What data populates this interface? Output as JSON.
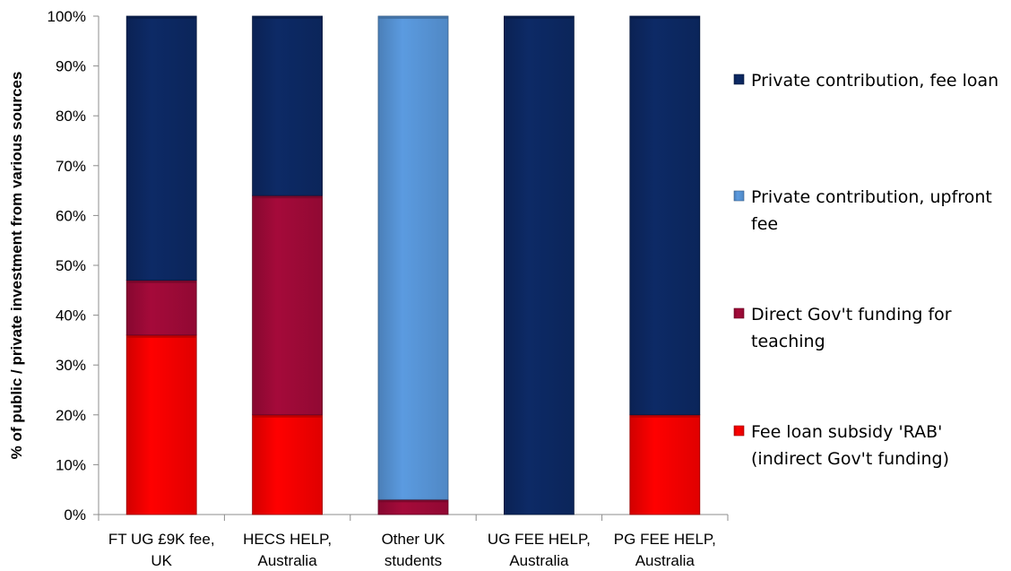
{
  "chart_data": {
    "type": "bar",
    "stacked": true,
    "ylabel": "% of public / private investment from various sources",
    "xlabel": "",
    "ylim": [
      0,
      100
    ],
    "yticks": [
      "0%",
      "10%",
      "20%",
      "30%",
      "40%",
      "50%",
      "60%",
      "70%",
      "80%",
      "90%",
      "100%"
    ],
    "categories": [
      [
        "FT UG £9K fee,",
        "UK"
      ],
      [
        "HECS HELP,",
        "Australia"
      ],
      [
        "Other UK",
        "students"
      ],
      [
        "UG FEE HELP,",
        "Australia"
      ],
      [
        "PG FEE HELP,",
        "Australia"
      ]
    ],
    "series": [
      {
        "name": "Fee loan subsidy 'RAB' (indirect Gov't funding)",
        "legend_lines": [
          "Fee loan subsidy 'RAB'",
          "(indirect Gov't funding)"
        ],
        "color": "#ff0000",
        "values": [
          36,
          20,
          0,
          0,
          20
        ]
      },
      {
        "name": "Direct Gov't funding for teaching",
        "legend_lines": [
          "Direct Gov't funding for",
          "teaching"
        ],
        "color": "#a50a3a",
        "values": [
          11,
          44,
          3,
          0,
          0
        ]
      },
      {
        "name": "Private contribution, upfront fee",
        "legend_lines": [
          "Private contribution, upfront",
          "fee"
        ],
        "color": "#5b9be0",
        "values": [
          0,
          0,
          97,
          0,
          0
        ]
      },
      {
        "name": "Private contribution, fee loan",
        "legend_lines": [
          "Private contribution, fee loan"
        ],
        "color": "#0d2a66",
        "values": [
          53,
          36,
          0,
          100,
          80
        ]
      }
    ],
    "legend_position": "right"
  }
}
